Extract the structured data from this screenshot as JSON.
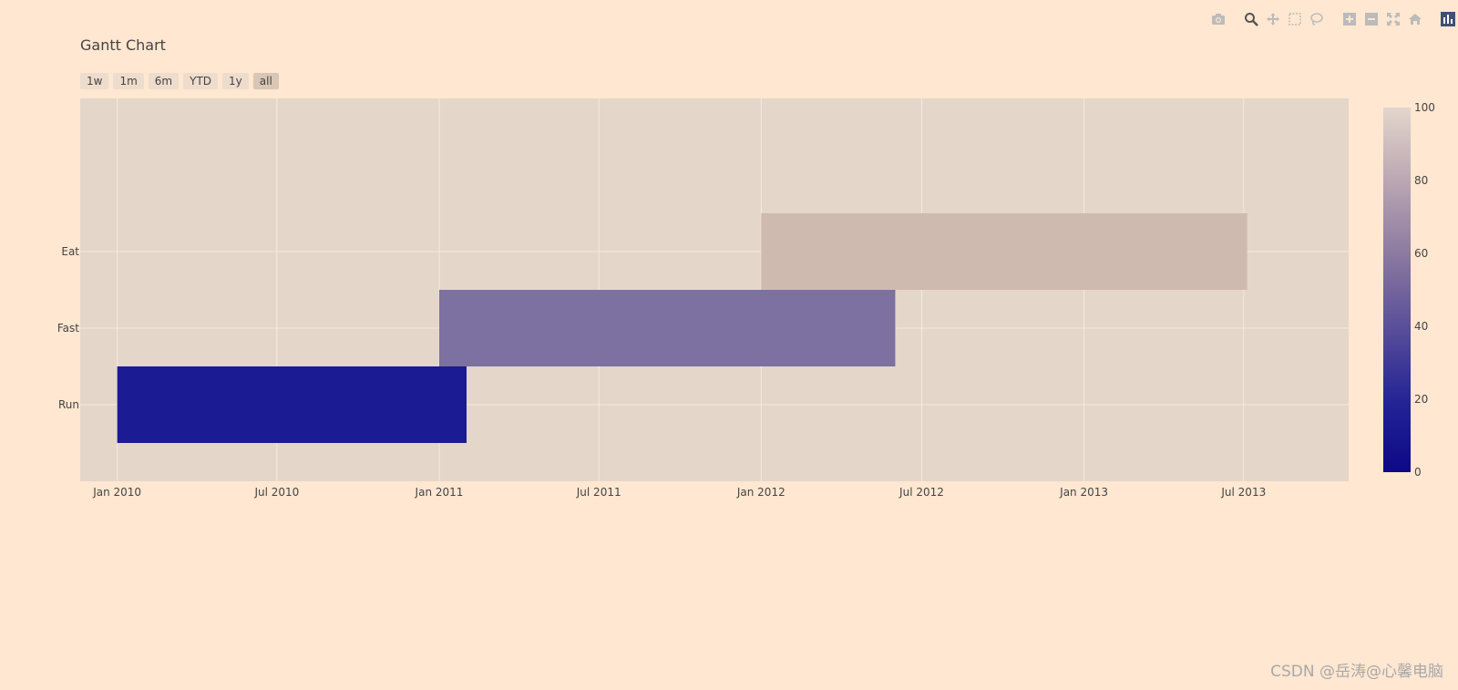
{
  "modebar": {
    "icons": [
      "camera-icon",
      "zoom-icon",
      "pan-icon",
      "box-select-icon",
      "lasso-select-icon",
      "zoom-in-icon",
      "zoom-out-icon",
      "autoscale-icon",
      "reset-axes-icon",
      "plotly-logo-icon"
    ]
  },
  "range_selector": {
    "buttons": [
      "1w",
      "1m",
      "6m",
      "YTD",
      "1y",
      "all"
    ],
    "active": "all"
  },
  "colorbar": {
    "min": 0,
    "max": 100,
    "tick_labels": [
      "0",
      "20",
      "40",
      "60",
      "80",
      "100"
    ],
    "colors": [
      "#0d0887",
      "#252595",
      "#5a4f99",
      "#8c7aa1",
      "#bba7b3",
      "#e3d6cb"
    ]
  },
  "chart_data": {
    "type": "gantt",
    "title": "Gantt Chart",
    "xlabel": "",
    "ylabel": "",
    "y_categories": [
      "Eat",
      "Fast",
      "Run"
    ],
    "x_tick_labels": [
      "Jan 2010",
      "Jul 2010",
      "Jan 2011",
      "Jul 2011",
      "Jan 2012",
      "Jul 2012",
      "Jan 2013",
      "Jul 2013"
    ],
    "tasks": [
      {
        "task": "Run",
        "start": "2010-01-01",
        "end": "2011-02-01",
        "complete": 10,
        "color": "#1b1b93"
      },
      {
        "task": "Fast",
        "start": "2011-01-01",
        "end": "2012-06-01",
        "complete": 55,
        "color": "#7c71a0"
      },
      {
        "task": "Eat",
        "start": "2012-01-01",
        "end": "2013-07-05",
        "complete": 95,
        "color": "#cfbab0"
      }
    ],
    "grid": true
  },
  "watermark": "CSDN @岳涛@心馨电脑"
}
